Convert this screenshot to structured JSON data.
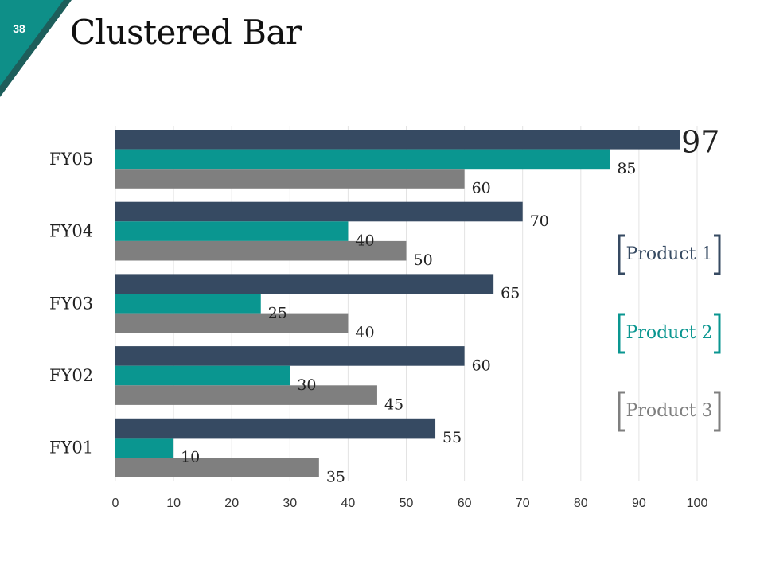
{
  "slide": {
    "number": "38",
    "title": "Clustered Bar",
    "accent_color": "#0E8F88",
    "accent_dark": "#1D5E5B"
  },
  "chart_data": {
    "type": "bar",
    "orientation": "horizontal",
    "title": "Clustered Bar",
    "categories": [
      "FY05",
      "FY04",
      "FY03",
      "FY02",
      "FY01"
    ],
    "series": [
      {
        "name": "Product 1",
        "color": "#364A62",
        "values": [
          97,
          70,
          65,
          60,
          55
        ]
      },
      {
        "name": "Product 2",
        "color": "#0A9690",
        "values": [
          85,
          40,
          25,
          30,
          10
        ]
      },
      {
        "name": "Product 3",
        "color": "#7F7F7F",
        "values": [
          60,
          50,
          40,
          45,
          35
        ]
      }
    ],
    "xlim": [
      0,
      100
    ],
    "x_ticks": [
      0,
      10,
      20,
      30,
      40,
      50,
      60,
      70,
      80,
      90,
      100
    ],
    "xlabel": "",
    "ylabel": "",
    "grid": true,
    "legend_position": "right",
    "legend_text_colors": [
      "#364A62",
      "#0A9690",
      "#7F7F7F"
    ]
  }
}
